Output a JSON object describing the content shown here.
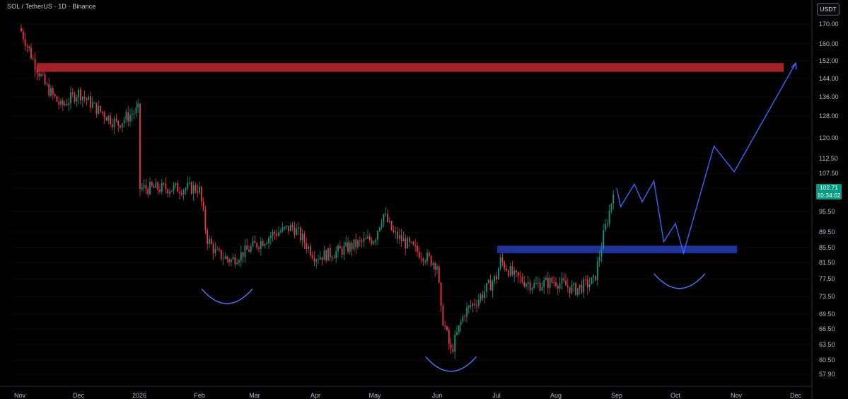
{
  "header": {
    "symbol_line": "SOL / TetherUS · 1D · Binance",
    "currency_button": "USDT"
  },
  "price_axis": {
    "ticks": [
      "170.00",
      "160.00",
      "152.00",
      "144.00",
      "136.00",
      "128.00",
      "120.00",
      "112.50",
      "107.50",
      "102.71",
      "95.50",
      "89.50",
      "85.50",
      "81.50",
      "77.50",
      "73.50",
      "69.50",
      "66.50",
      "63.50",
      "60.50",
      "57.90"
    ]
  },
  "current_price": {
    "price": "102.71",
    "countdown": "10:34:02",
    "color": "#089981"
  },
  "chart_data": {
    "type": "candlestick",
    "x_axis_labels": [
      "Nov",
      "Dec",
      "2026",
      "Feb",
      "Mar",
      "Apr",
      "May",
      "Jun",
      "Jul",
      "Aug",
      "Sep",
      "Oct",
      "Nov",
      "Dec"
    ],
    "y_axis_ticks": [
      57.9,
      60.5,
      63.5,
      66.5,
      69.5,
      73.5,
      77.5,
      81.5,
      85.5,
      89.5,
      95.5,
      107.5,
      112.5,
      120,
      128,
      136,
      144,
      152,
      160,
      170
    ],
    "ylim": [
      55.5,
      178
    ],
    "up_color": "#089981",
    "down_color": "#f23645",
    "price_path": [
      [
        "Nov",
        168
      ],
      [
        "Nov 8",
        152
      ],
      [
        "Nov 14",
        141
      ],
      [
        "Nov 22",
        132
      ],
      [
        "Dec",
        138
      ],
      [
        "Dec 10",
        131
      ],
      [
        "Dec 20",
        125
      ],
      [
        "2026",
        131
      ],
      [
        "Jan 10",
        143
      ],
      [
        "Jan 15",
        141
      ],
      [
        "Jan 24",
        127
      ],
      [
        "Jan 30",
        112
      ],
      [
        "Feb",
        102
      ],
      [
        "Feb 5",
        88
      ],
      [
        "Feb 10",
        84
      ],
      [
        "Feb 18",
        82
      ],
      [
        "Mar",
        86
      ],
      [
        "Mar 10",
        89
      ],
      [
        "Mar 20",
        91
      ],
      [
        "Apr",
        83
      ],
      [
        "Apr 10",
        84
      ],
      [
        "Apr 20",
        86
      ],
      [
        "May",
        88
      ],
      [
        "May 5",
        95
      ],
      [
        "May 10",
        89
      ],
      [
        "May 20",
        85
      ],
      [
        "Jun",
        81
      ],
      [
        "Jun 3",
        70
      ],
      [
        "Jun 8",
        62
      ],
      [
        "Jun 15",
        70
      ],
      [
        "Jun 22",
        73
      ],
      [
        "Jul",
        78
      ],
      [
        "Jul 3",
        82
      ],
      [
        "Jul 10",
        78
      ],
      [
        "Jul 20",
        76
      ],
      [
        "Aug",
        77
      ],
      [
        "Aug 10",
        75
      ],
      [
        "Aug 15",
        76
      ],
      [
        "Aug 20",
        77
      ],
      [
        "Aug 25",
        90
      ],
      [
        "Aug 28",
        97
      ],
      [
        "Sep",
        110
      ],
      [
        "Sep 3",
        102.71
      ]
    ],
    "resistance_zone": {
      "from": 147,
      "to": 151,
      "color": "#b3262d"
    },
    "support_zone": {
      "from": 84,
      "to": 86,
      "color": "#2338a8"
    },
    "forecast_path": [
      [
        "Sep",
        102.71
      ],
      [
        "Sep 3",
        97
      ],
      [
        "Sep 10",
        104
      ],
      [
        "Sep 14",
        98.5
      ],
      [
        "Sep 20",
        105
      ],
      [
        "Sep 25",
        87
      ],
      [
        "Oct",
        92
      ],
      [
        "Oct 5",
        84
      ],
      [
        "Oct 20",
        117
      ],
      [
        "Oct 30",
        108
      ],
      [
        "Dec",
        151
      ]
    ],
    "arcs": [
      {
        "center": [
          "Feb 16",
          75
        ],
        "color": "#4d7bff"
      },
      {
        "center": [
          "Jun 8",
          61
        ],
        "color": "#4d7bff"
      },
      {
        "center": [
          "Oct 3",
          78.5
        ],
        "color": "#4d7bff"
      }
    ]
  }
}
